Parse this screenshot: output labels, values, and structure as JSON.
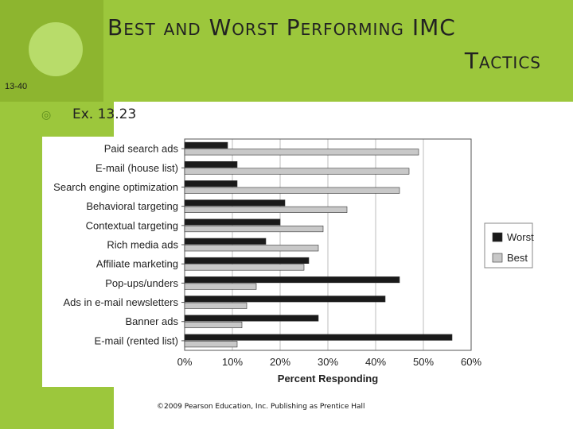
{
  "slide": {
    "number": "13-40",
    "title_line1": "Best and Worst Performing IMC",
    "title_line2": "Tactics",
    "bullet": "Ex. 13.23",
    "footer": "©2009 Pearson Education, Inc. Publishing as Prentice Hall"
  },
  "colors": {
    "theme_green": "#9cc73c",
    "worst_bar": "#1a1a1a",
    "best_bar": "#c8c8c8"
  },
  "chart_data": {
    "type": "bar",
    "orientation": "horizontal",
    "xlabel": "Percent Responding",
    "xlim": [
      0,
      60
    ],
    "xticks": [
      "0%",
      "10%",
      "20%",
      "30%",
      "40%",
      "50%",
      "60%"
    ],
    "grid": true,
    "legend_position": "right",
    "categories": [
      "Paid search ads",
      "E-mail (house list)",
      "Search engine optimization",
      "Behavioral targeting",
      "Contextual targeting",
      "Rich media ads",
      "Affiliate marketing",
      "Pop-ups/unders",
      "Ads in e-mail newsletters",
      "Banner ads",
      "E-mail (rented list)"
    ],
    "series": [
      {
        "name": "Worst",
        "color": "#1a1a1a",
        "values": [
          9,
          11,
          11,
          21,
          20,
          17,
          26,
          45,
          42,
          28,
          56
        ]
      },
      {
        "name": "Best",
        "color": "#c8c8c8",
        "values": [
          49,
          47,
          45,
          34,
          29,
          28,
          25,
          15,
          13,
          12,
          11
        ]
      }
    ]
  }
}
